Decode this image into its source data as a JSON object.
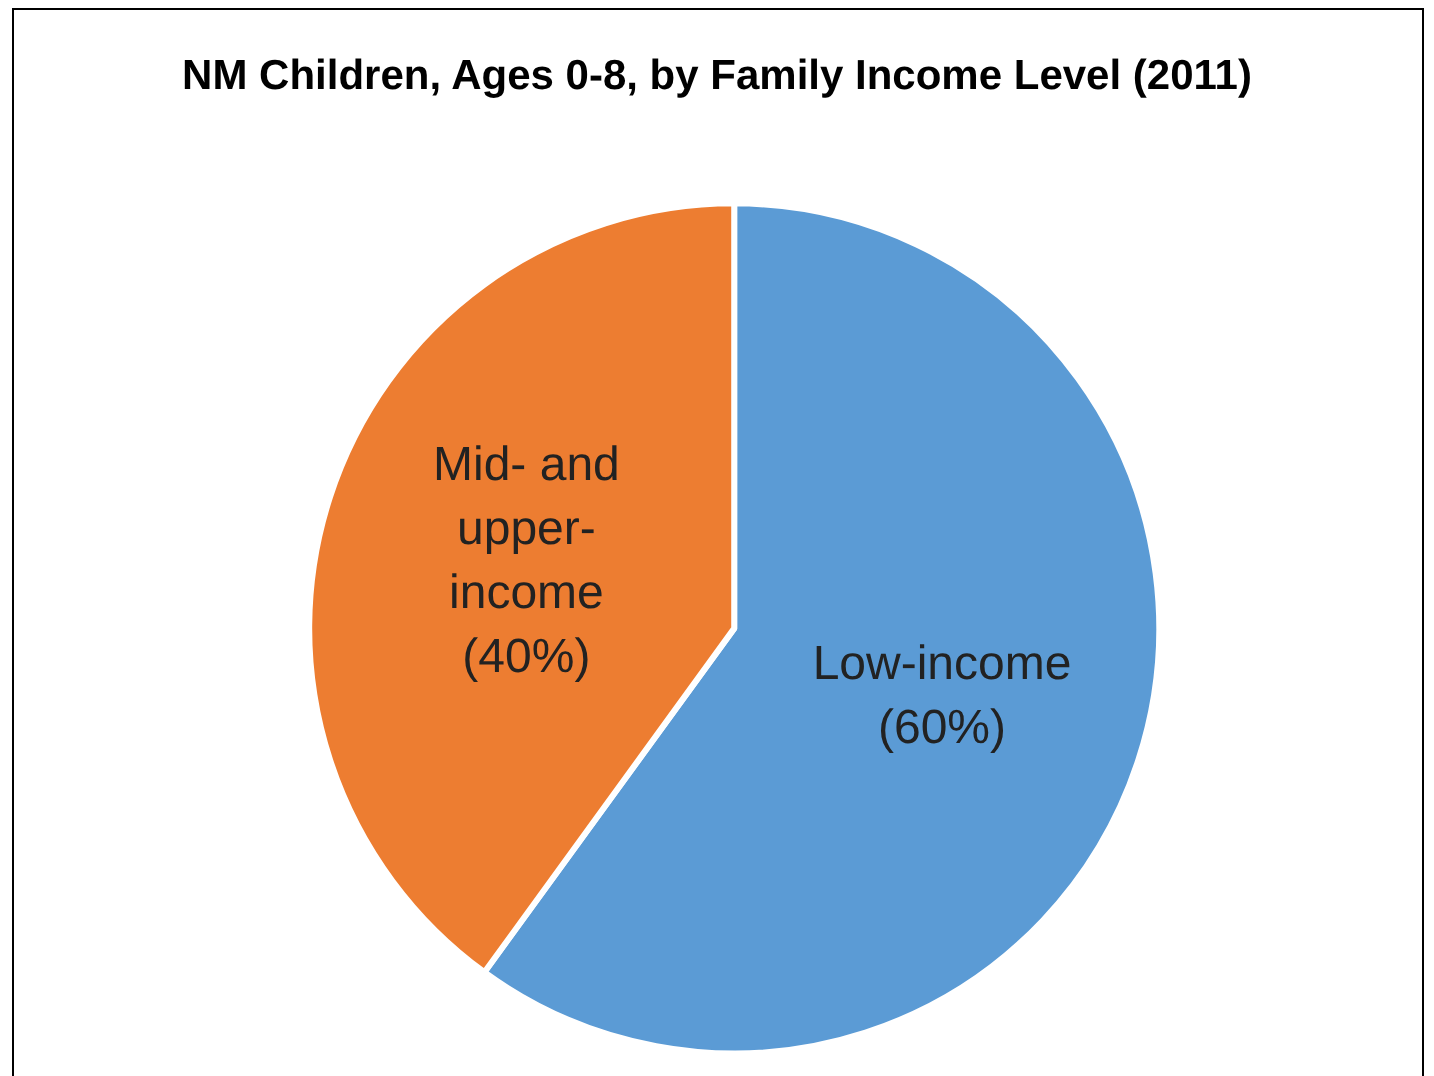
{
  "chart_data": {
    "type": "pie",
    "title": "NM Children, Ages 0-8, by Family Income Level (2011)",
    "categories": [
      "Low-income",
      "Mid- and upper-income"
    ],
    "values": [
      60,
      40
    ],
    "colors": [
      "#5b9bd5",
      "#ed7d31"
    ],
    "value_labels": [
      "(60%)",
      "(40%)"
    ]
  }
}
